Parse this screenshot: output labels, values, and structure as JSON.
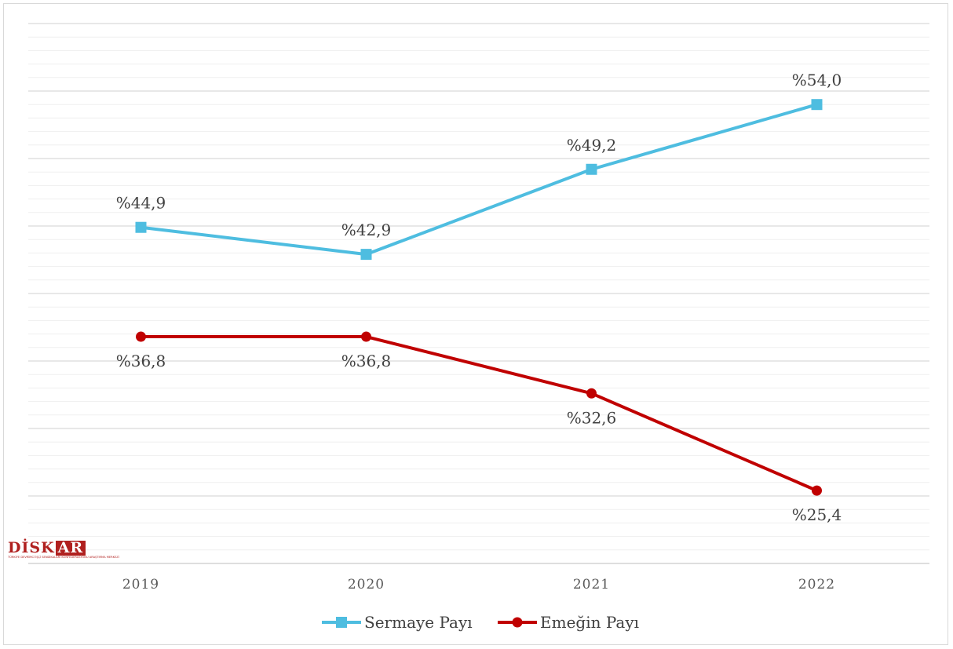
{
  "chart_data": {
    "type": "line",
    "categories": [
      "2019",
      "2020",
      "2021",
      "2022"
    ],
    "series": [
      {
        "name": "Sermaye Payı",
        "values": [
          44.9,
          42.9,
          49.2,
          54.0
        ],
        "labels": [
          "%44,9",
          "%42,9",
          "%49,2",
          "%54,0"
        ],
        "color": "#4ebde0",
        "marker": "square",
        "label_position": "above"
      },
      {
        "name": "Emeğin Payı",
        "values": [
          36.8,
          36.8,
          32.6,
          25.4
        ],
        "labels": [
          "%36,8",
          "%36,8",
          "%32,6",
          "%25,4"
        ],
        "color": "#c00000",
        "marker": "circle",
        "label_position": "below"
      }
    ],
    "ylim": [
      20,
      60
    ],
    "grid": true,
    "legend": "bottom"
  },
  "logo": {
    "text_main": "DİSK",
    "text_accent": "AR",
    "subtitle": "TÜRKİYE DEVRİMCİ İŞÇİ SENDİKALARI KONFEDERASYONU ARAŞTIRMA MERKEZİ"
  }
}
